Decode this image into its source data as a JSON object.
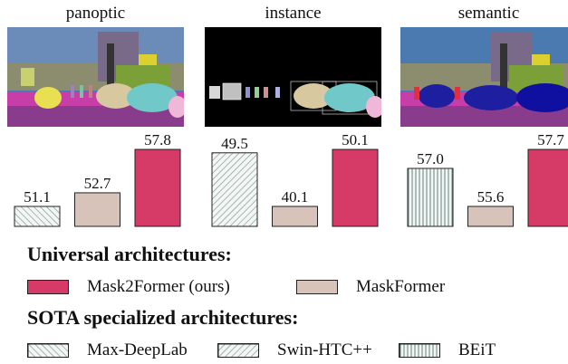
{
  "chart_data": [
    {
      "type": "bar",
      "title": "panoptic",
      "categories": [
        "Max-DeepLab",
        "MaskFormer",
        "Mask2Former (ours)"
      ],
      "values": [
        51.1,
        52.7,
        57.8
      ],
      "value_labels": [
        "51.1",
        "52.7",
        "57.8"
      ],
      "patterns": [
        "backslash",
        "solid-tan",
        "solid-red"
      ]
    },
    {
      "type": "bar",
      "title": "instance",
      "categories": [
        "Swin-HTC++",
        "MaskFormer",
        "Mask2Former (ours)"
      ],
      "values": [
        49.5,
        40.1,
        50.1
      ],
      "value_labels": [
        "49.5",
        "40.1",
        "50.1"
      ],
      "patterns": [
        "slash",
        "solid-tan",
        "solid-red"
      ]
    },
    {
      "type": "bar",
      "title": "semantic",
      "categories": [
        "BEiT",
        "MaskFormer",
        "Mask2Former (ours)"
      ],
      "values": [
        57.0,
        55.6,
        57.7
      ],
      "value_labels": [
        "57.0",
        "55.6",
        "57.7"
      ],
      "patterns": [
        "vertical",
        "solid-tan",
        "solid-red"
      ]
    }
  ],
  "legend": {
    "universal_heading": "Universal architectures:",
    "universal_items": [
      "Mask2Former (ours)",
      "MaskFormer"
    ],
    "sota_heading": "SOTA specialized architectures:",
    "sota_items": [
      "Max-DeepLab",
      "Swin-HTC++",
      "BEiT"
    ]
  },
  "colors": {
    "mask2former": "#d63b67",
    "maskformer": "#d8c3bb",
    "hatch_stroke": "#6f8f86"
  }
}
